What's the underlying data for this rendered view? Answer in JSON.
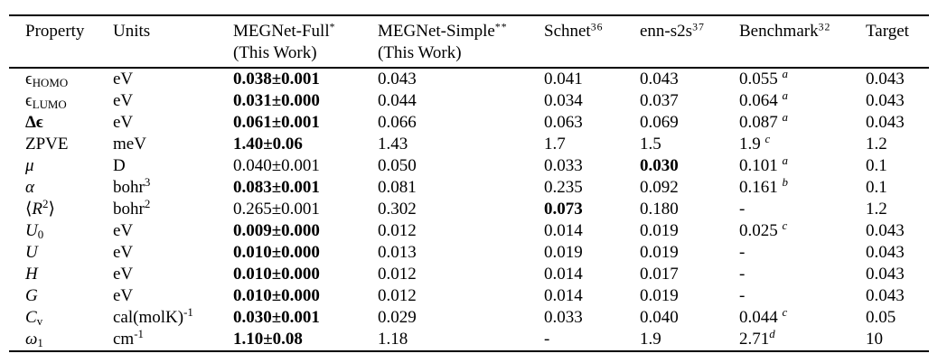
{
  "table": {
    "columns": [
      {
        "label": "Property",
        "sup": "",
        "line2": ""
      },
      {
        "label": "Units",
        "sup": "",
        "line2": ""
      },
      {
        "label": "MEGNet-Full",
        "sup": "*",
        "line2": "(This Work)"
      },
      {
        "label": "MEGNet-Simple",
        "sup": "**",
        "line2": "(This Work)"
      },
      {
        "label": "Schnet",
        "sup": "36",
        "line2": ""
      },
      {
        "label": "enn-s2s",
        "sup": "37",
        "line2": ""
      },
      {
        "label": "Benchmark",
        "sup": "32",
        "line2": ""
      },
      {
        "label": "Target",
        "sup": "",
        "line2": ""
      }
    ],
    "rows": [
      {
        "cells": [
          "ϵ_{HOMO}",
          "eV",
          "0.038±0.001",
          "0.043",
          "0.041",
          "0.043",
          "0.055 ^{/a/}",
          "0.043"
        ],
        "bold": [
          false,
          false,
          true,
          false,
          false,
          false,
          false,
          false
        ]
      },
      {
        "cells": [
          "ϵ_{LUMO}",
          "eV",
          "0.031±0.000",
          "0.044",
          "0.034",
          "0.037",
          "0.064 ^{/a/}",
          "0.043"
        ],
        "bold": [
          false,
          false,
          true,
          false,
          false,
          false,
          false,
          false
        ]
      },
      {
        "cells": [
          "Δϵ",
          "eV",
          "0.061±0.001",
          "0.066",
          "0.063",
          "0.069",
          "0.087 ^{/a/}",
          "0.043"
        ],
        "bold": [
          true,
          false,
          true,
          false,
          false,
          false,
          false,
          false
        ]
      },
      {
        "cells": [
          "ZPVE",
          "meV",
          "1.40±0.06",
          "1.43",
          "1.7",
          "1.5",
          "1.9 ^{/c/}",
          "1.2"
        ],
        "bold": [
          false,
          false,
          true,
          false,
          false,
          false,
          false,
          false
        ]
      },
      {
        "cells": [
          "/μ/",
          "D",
          "0.040±0.001",
          "0.050",
          "0.033",
          "0.030",
          "0.101 ^{/a/}",
          "0.1"
        ],
        "bold": [
          false,
          false,
          false,
          false,
          false,
          true,
          false,
          false
        ]
      },
      {
        "cells": [
          "/α/",
          "bohr^{3}",
          "0.083±0.001",
          "0.081",
          "0.235",
          "0.092",
          "0.161 ^{/b/}",
          "0.1"
        ],
        "bold": [
          false,
          false,
          true,
          false,
          false,
          false,
          false,
          false
        ]
      },
      {
        "cells": [
          "⟨/R/^{2}⟩",
          "bohr^{2}",
          "0.265±0.001",
          "0.302",
          "0.073",
          "0.180",
          "-",
          "1.2"
        ],
        "bold": [
          false,
          false,
          false,
          false,
          true,
          false,
          false,
          false
        ]
      },
      {
        "cells": [
          "/U/_{0}",
          "eV",
          "0.009±0.000",
          "0.012",
          "0.014",
          "0.019",
          "0.025 ^{/c/}",
          "0.043"
        ],
        "bold": [
          false,
          false,
          true,
          false,
          false,
          false,
          false,
          false
        ]
      },
      {
        "cells": [
          "/U/",
          "eV",
          "0.010±0.000",
          "0.013",
          "0.019",
          "0.019",
          "-",
          "0.043"
        ],
        "bold": [
          false,
          false,
          true,
          false,
          false,
          false,
          false,
          false
        ]
      },
      {
        "cells": [
          "/H/",
          "eV",
          "0.010±0.000",
          "0.012",
          "0.014",
          "0.017",
          "-",
          "0.043"
        ],
        "bold": [
          false,
          false,
          true,
          false,
          false,
          false,
          false,
          false
        ]
      },
      {
        "cells": [
          "/G/",
          "eV",
          "0.010±0.000",
          "0.012",
          "0.014",
          "0.019",
          "-",
          "0.043"
        ],
        "bold": [
          false,
          false,
          true,
          false,
          false,
          false,
          false,
          false
        ]
      },
      {
        "cells": [
          "/C/_{v}",
          "cal(molK)^{-1}",
          "0.030±0.001",
          "0.029",
          "0.033",
          "0.040",
          "0.044 ^{/c/}",
          "0.05"
        ],
        "bold": [
          false,
          false,
          true,
          false,
          false,
          false,
          false,
          false
        ]
      },
      {
        "cells": [
          "/ω/_{1}",
          "cm^{-1}",
          "1.10±0.08",
          "1.18",
          "-",
          "1.9",
          "2.71^{/d/}",
          "10"
        ],
        "bold": [
          false,
          false,
          true,
          false,
          false,
          false,
          false,
          false
        ]
      }
    ]
  },
  "colors": {
    "text": "#000000",
    "background": "#ffffff",
    "rule": "#000000"
  }
}
